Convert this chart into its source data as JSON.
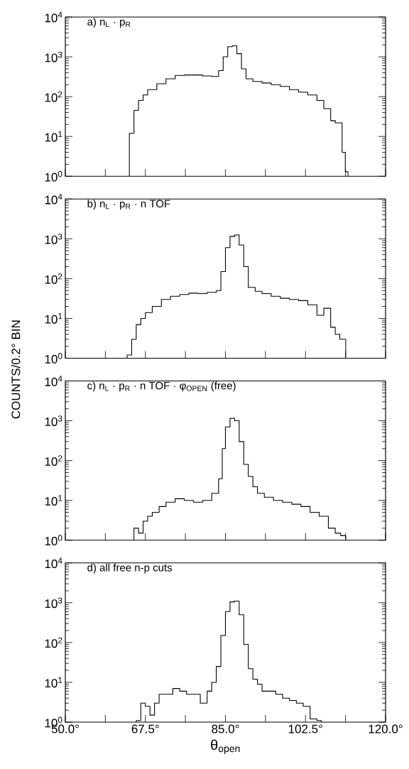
{
  "chart_data": [
    {
      "type": "histogram",
      "title": "a) n$_{L}$ · p$_{R}$",
      "color": "#000000",
      "log": true,
      "tick_labels": "y",
      "bins": [
        64,
        65,
        66,
        67,
        68,
        70,
        72,
        74,
        76,
        78,
        80,
        82,
        83.5,
        84.5,
        85.5,
        86.5,
        87.5,
        88.5,
        89.5,
        91,
        93,
        95,
        97,
        99,
        101,
        103,
        105,
        106.5,
        108,
        109,
        110.5,
        111.2,
        111.8
      ],
      "values": [
        12,
        45,
        80,
        110,
        150,
        210,
        280,
        340,
        350,
        350,
        330,
        320,
        450,
        1000,
        1800,
        1900,
        1200,
        500,
        280,
        240,
        220,
        200,
        180,
        150,
        130,
        110,
        80,
        50,
        25,
        22,
        4,
        1.3
      ],
      "xlim": [
        50,
        120
      ],
      "ylim": [
        1,
        10000
      ],
      "xticks": [
        50,
        58.75,
        67.5,
        76.25,
        85,
        93.75,
        102.5,
        111.25,
        120
      ],
      "yticks": [
        {
          "value": 1,
          "label": "10$^{0}$"
        },
        {
          "value": 10,
          "label": "10$^{1}$"
        },
        {
          "value": 100,
          "label": "10$^{2}$"
        },
        {
          "value": 1000,
          "label": "10$^{3}$"
        },
        {
          "value": 10000,
          "label": "10$^{4}$"
        }
      ]
    },
    {
      "type": "histogram",
      "title": "b) n$_{L}$ · p$_{R}$ · n  TOF",
      "ylabel": "COUNTS/0.2° BIN",
      "color": "#000000",
      "log": true,
      "tick_labels": "y",
      "bins": [
        63.5,
        64.5,
        65.5,
        66.5,
        67.5,
        69,
        71,
        73,
        75,
        77,
        79,
        81,
        83,
        84,
        85,
        86,
        87,
        88,
        89,
        90,
        91.5,
        93,
        95,
        97,
        99,
        101,
        103,
        105,
        106.5,
        108,
        109,
        110,
        111.3
      ],
      "values": [
        1.2,
        3,
        7,
        10,
        14,
        20,
        30,
        36,
        40,
        43,
        42,
        45,
        50,
        150,
        600,
        1150,
        1250,
        700,
        200,
        60,
        48,
        42,
        36,
        32,
        30,
        28,
        22,
        12,
        18,
        6,
        4,
        3
      ],
      "xlim": [
        50,
        120
      ],
      "ylim": [
        1,
        10000
      ],
      "xticks": [
        50,
        58.75,
        67.5,
        76.25,
        85,
        93.75,
        102.5,
        111.25,
        120
      ],
      "yticks": [
        {
          "value": 1,
          "label": "10$^{0}$"
        },
        {
          "value": 10,
          "label": "10$^{1}$"
        },
        {
          "value": 100,
          "label": "10$^{2}$"
        },
        {
          "value": 1000,
          "label": "10$^{3}$"
        },
        {
          "value": 10000,
          "label": "10$^{4}$"
        }
      ]
    },
    {
      "type": "histogram",
      "title": "c) n$_{L}$ · p$_{R}$ · n  TOF · φ$_{OPEN}$ (free)",
      "color": "#000000",
      "log": true,
      "tick_labels": "y",
      "bins": [
        65,
        66,
        67,
        68,
        69,
        70.5,
        72,
        74,
        76,
        78,
        80,
        82,
        83.5,
        84.3,
        85,
        86,
        87,
        88,
        89,
        90,
        91,
        92,
        93.5,
        95.5,
        97.5,
        99.5,
        101.5,
        103.5,
        105.5,
        107.5,
        109,
        110.2,
        111.3
      ],
      "values": [
        2,
        1.5,
        3,
        4,
        5,
        7,
        9,
        11,
        10,
        9,
        10,
        15,
        35,
        200,
        700,
        1150,
        1000,
        300,
        80,
        40,
        22,
        15,
        12,
        10,
        9,
        8,
        7,
        5,
        4,
        2,
        1.5,
        1.3
      ],
      "xlim": [
        50,
        120
      ],
      "ylim": [
        1,
        10000
      ],
      "xticks": [
        50,
        58.75,
        67.5,
        76.25,
        85,
        93.75,
        102.5,
        111.25,
        120
      ],
      "yticks": [
        {
          "value": 1,
          "label": "10$^{0}$"
        },
        {
          "value": 10,
          "label": "10$^{1}$"
        },
        {
          "value": 100,
          "label": "10$^{2}$"
        },
        {
          "value": 1000,
          "label": "10$^{3}$"
        },
        {
          "value": 10000,
          "label": "10$^{4}$"
        }
      ]
    },
    {
      "type": "histogram",
      "title": "d) all  free  n-p  cuts",
      "xlabel": "θ$_{open}$",
      "color": "#000000",
      "log": true,
      "bins": [
        65.5,
        66.5,
        67.5,
        68.5,
        69.5,
        70.5,
        72,
        73.5,
        75,
        76.5,
        78,
        79.5,
        81,
        82,
        83,
        84,
        85,
        86,
        87,
        88,
        89,
        90,
        91,
        92,
        93,
        94.5,
        96,
        97.5,
        99,
        100.5,
        102,
        103.5,
        105,
        106
      ],
      "values": [
        1.1,
        3,
        2.5,
        1.5,
        3,
        5,
        5,
        7,
        6,
        5,
        5,
        3,
        6,
        10,
        25,
        150,
        600,
        1050,
        1100,
        500,
        90,
        22,
        12,
        9,
        6,
        6,
        5,
        4,
        3.5,
        3,
        2.5,
        1.2,
        1.1
      ],
      "xlim": [
        50,
        120
      ],
      "ylim": [
        1,
        10000
      ],
      "xticks": [
        {
          "value": 50,
          "label": "50.0°"
        },
        {
          "value": 58.75,
          "label": null
        },
        {
          "value": 67.5,
          "label": "67.5°"
        },
        {
          "value": 76.25,
          "label": null
        },
        {
          "value": 85,
          "label": "85.0°"
        },
        {
          "value": 93.75,
          "label": null
        },
        {
          "value": 102.5,
          "label": "102.5°"
        },
        {
          "value": 111.25,
          "label": null
        },
        {
          "value": 120,
          "label": "120.0°"
        }
      ],
      "yticks": [
        {
          "value": 1,
          "label": "10$^{0}$"
        },
        {
          "value": 10,
          "label": "10$^{1}$"
        },
        {
          "value": 100,
          "label": "10$^{2}$"
        },
        {
          "value": 1000,
          "label": "10$^{3}$"
        },
        {
          "value": 10000,
          "label": "10$^{4}$"
        }
      ]
    }
  ]
}
